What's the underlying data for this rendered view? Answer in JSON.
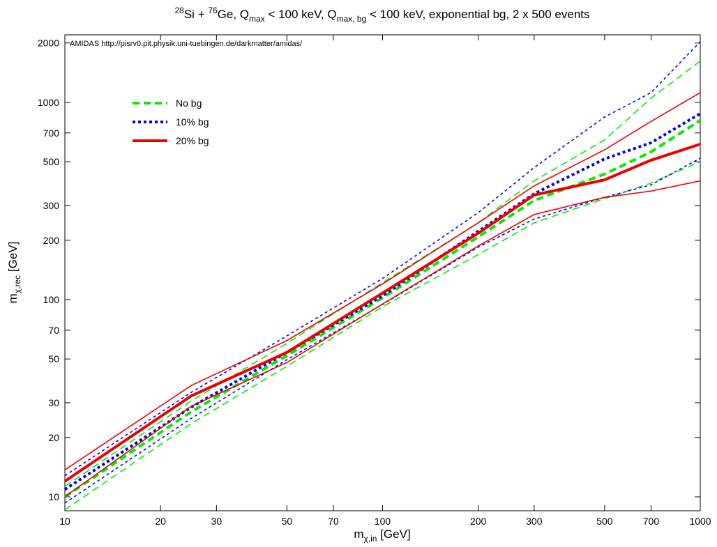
{
  "chart_data": {
    "type": "line",
    "title": [
      {
        "text": "28",
        "style": "sup"
      },
      {
        "text": "Si + ",
        "style": "normal"
      },
      {
        "text": "76",
        "style": "sup"
      },
      {
        "text": "Ge, Q",
        "style": "normal"
      },
      {
        "text": "max",
        "style": "sub"
      },
      {
        "text": " < 100 keV, Q",
        "style": "normal"
      },
      {
        "text": "max, bg",
        "style": "sub"
      },
      {
        "text": " < 100 keV, exponential bg, 2 x 500 events",
        "style": "normal"
      }
    ],
    "annotation": "AMIDAS   http://pisrv0.pit.physik.uni-tuebingen.de/darkmatter/amidas/",
    "x_label": [
      {
        "text": "m",
        "style": "normal"
      },
      {
        "text": "χ,in",
        "style": "sub"
      },
      {
        "text": " [GeV]",
        "style": "normal"
      }
    ],
    "y_label": [
      {
        "text": "m",
        "style": "normal"
      },
      {
        "text": "χ,rec",
        "style": "sub"
      },
      {
        "text": " [GeV]",
        "style": "normal"
      }
    ],
    "x": [
      10,
      25,
      50,
      100,
      200,
      300,
      500,
      700,
      1000
    ],
    "series": [
      {
        "name": "No bg",
        "color": "#00ee00",
        "dash": "dashed",
        "values": [
          10,
          27,
          52,
          102,
          208,
          318,
          433,
          561,
          810
        ],
        "upper": [
          11.3,
          30.6,
          60,
          122,
          245,
          400,
          645,
          1050,
          1620
        ],
        "lower": [
          8.6,
          23.5,
          45.9,
          92,
          169,
          245,
          325,
          390,
          500
        ]
      },
      {
        "name": "10% bg",
        "color": "#0000ee",
        "dash": "dotted",
        "values": [
          10.9,
          28.5,
          54,
          104.5,
          222,
          344,
          517,
          624,
          877
        ],
        "upper": [
          12.8,
          33.9,
          65.5,
          128,
          276,
          467,
          843,
          1120,
          2030
        ],
        "lower": [
          9.3,
          25,
          49.6,
          94.5,
          184.5,
          256,
          330,
          382,
          521
        ]
      },
      {
        "name": "20% bg",
        "color": "#ee0000",
        "dash": "solid",
        "values": [
          12,
          32.5,
          54,
          108,
          217,
          339,
          405,
          509,
          614
        ],
        "upper": [
          13.7,
          36.7,
          62,
          120,
          245,
          377,
          575,
          800,
          1120
        ],
        "lower": [
          10,
          28.8,
          48,
          95,
          187,
          270,
          330,
          355,
          400
        ]
      }
    ],
    "xscale": "log",
    "yscale": "log",
    "xlim": [
      10,
      1000
    ],
    "ylim": [
      8.5,
      2200
    ],
    "xticks": [
      10,
      20,
      30,
      50,
      70,
      100,
      200,
      300,
      500,
      700,
      1000
    ],
    "yticks": [
      10,
      20,
      30,
      50,
      70,
      100,
      200,
      300,
      500,
      700,
      1000,
      2000
    ],
    "legend": "upper left"
  }
}
